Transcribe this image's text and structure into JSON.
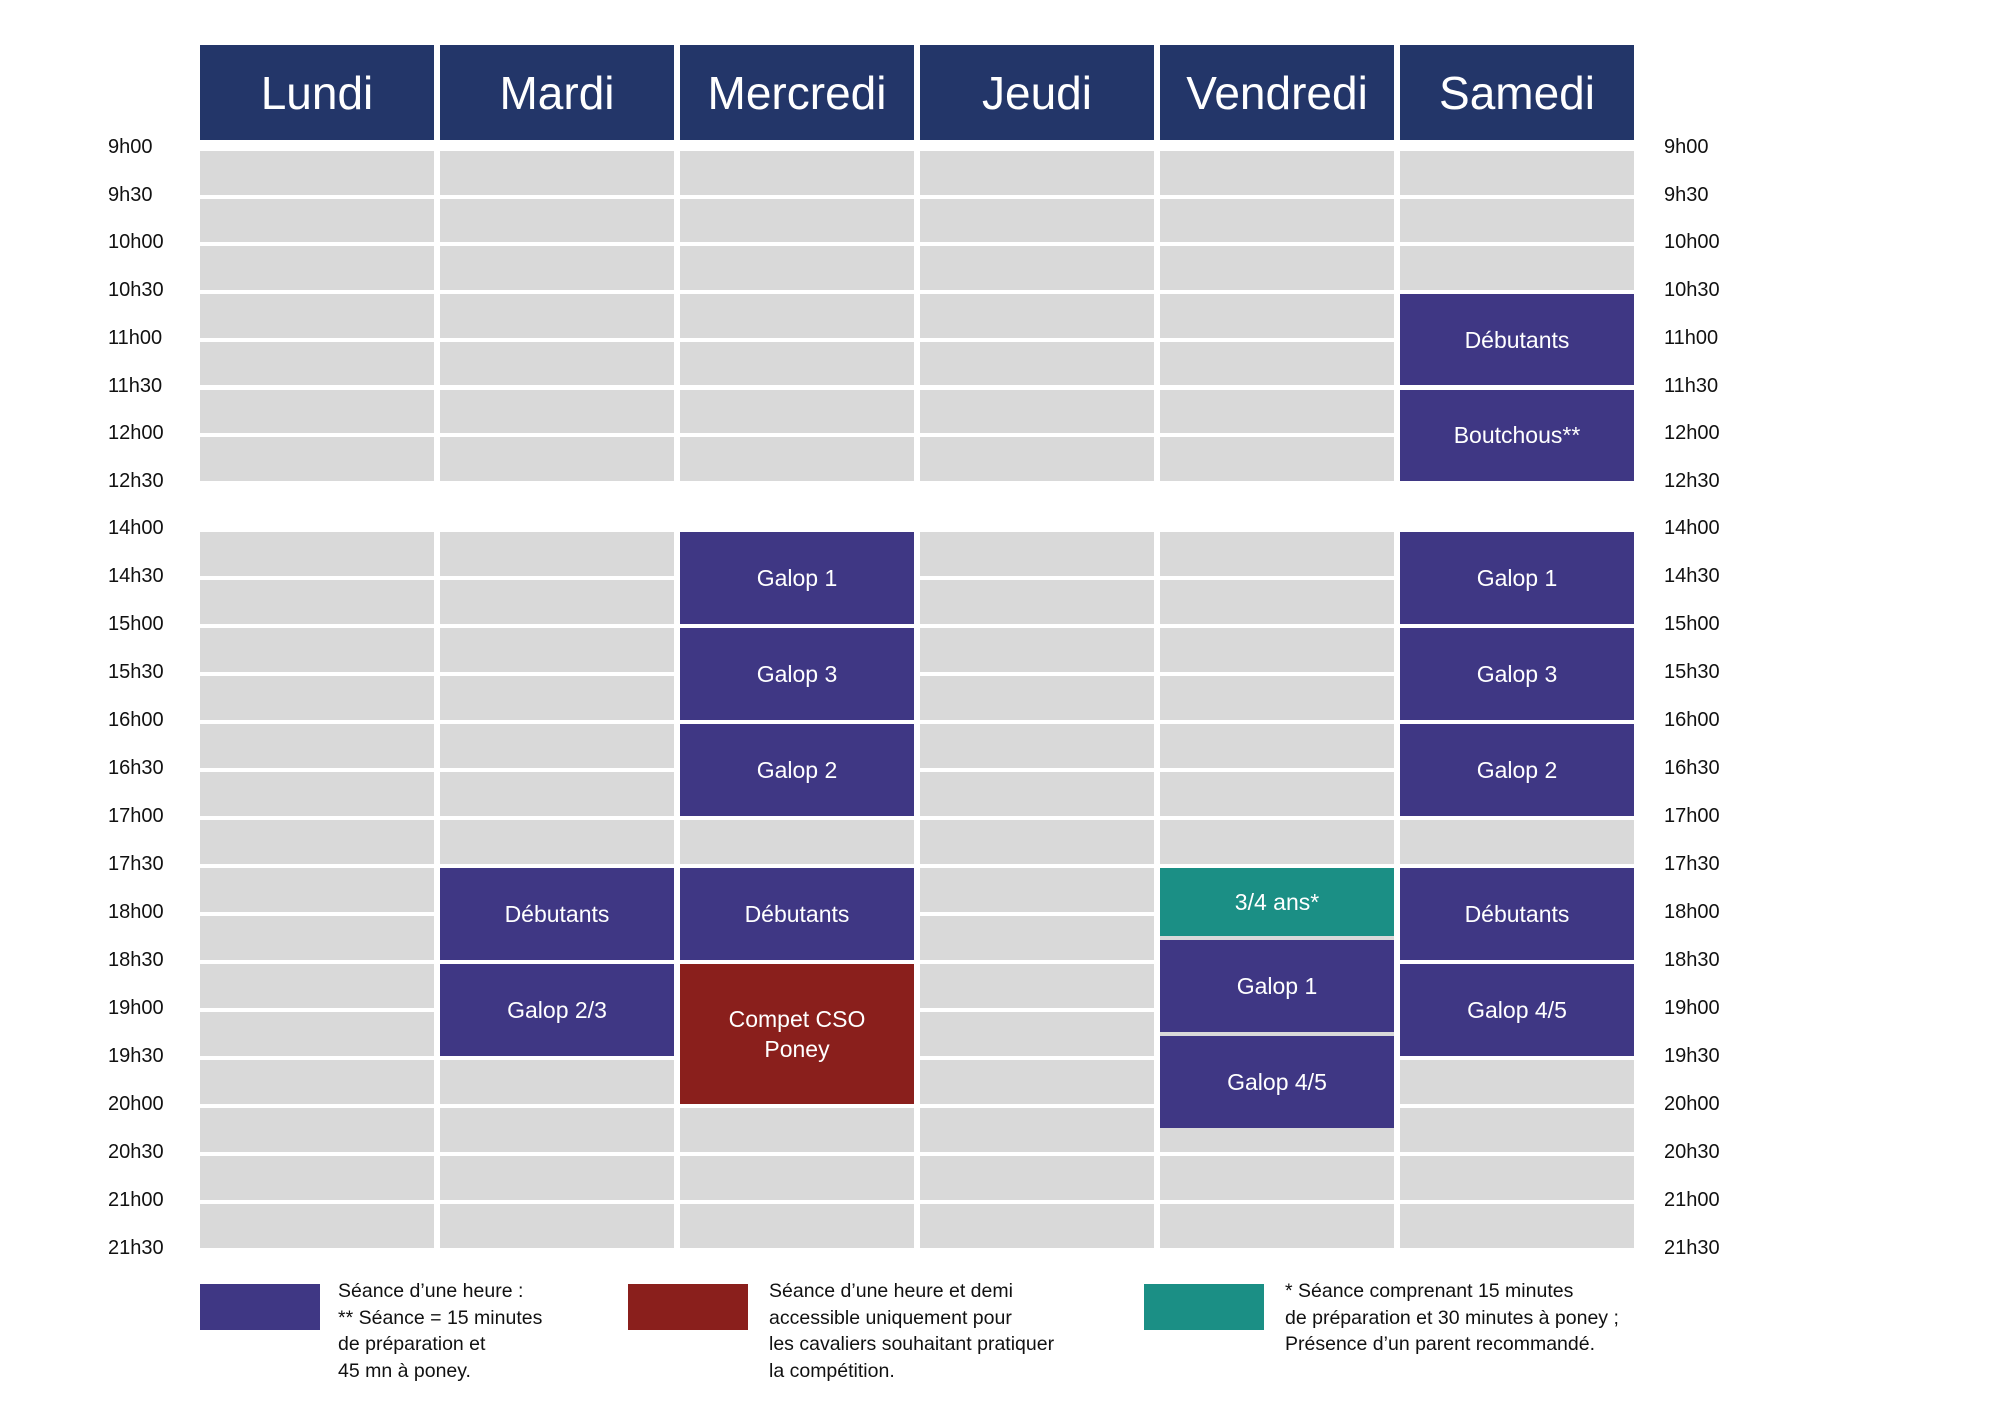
{
  "days": [
    "Lundi",
    "Mardi",
    "Mercredi",
    "Jeudi",
    "Vendredi",
    "Samedi"
  ],
  "times_morning": [
    "9h00",
    "9h30",
    "10h00",
    "10h30",
    "11h00",
    "11h30",
    "12h00",
    "12h30"
  ],
  "times_afternoon": [
    "14h00",
    "14h30",
    "15h00",
    "15h30",
    "16h00",
    "16h30",
    "17h00",
    "17h30",
    "18h00",
    "18h30",
    "19h00",
    "19h30",
    "20h00",
    "20h30",
    "21h00",
    "21h30"
  ],
  "colors": {
    "header": "#233669",
    "standard": "#3f3784",
    "competition": "#8a1f1c",
    "young": "#1b8f85",
    "empty": "#d9d9d9"
  },
  "events": [
    {
      "day": "Samedi",
      "start": "10h30",
      "end": "11h30",
      "label": "Débutants",
      "type": "standard"
    },
    {
      "day": "Samedi",
      "start": "11h30",
      "end": "12h30",
      "label": "Boutchous**",
      "type": "standard"
    },
    {
      "day": "Mercredi",
      "start": "14h00",
      "end": "15h00",
      "label": "Galop 1",
      "type": "standard"
    },
    {
      "day": "Mercredi",
      "start": "15h00",
      "end": "16h00",
      "label": "Galop 3",
      "type": "standard"
    },
    {
      "day": "Mercredi",
      "start": "16h00",
      "end": "17h00",
      "label": "Galop 2",
      "type": "standard"
    },
    {
      "day": "Mercredi",
      "start": "17h30",
      "end": "18h30",
      "label": "Débutants",
      "type": "standard"
    },
    {
      "day": "Mercredi",
      "start": "18h30",
      "end": "20h00",
      "label": "Compet CSO\nPoney",
      "type": "competition"
    },
    {
      "day": "Samedi",
      "start": "14h00",
      "end": "15h00",
      "label": "Galop 1",
      "type": "standard"
    },
    {
      "day": "Samedi",
      "start": "15h00",
      "end": "16h00",
      "label": "Galop 3",
      "type": "standard"
    },
    {
      "day": "Samedi",
      "start": "16h00",
      "end": "17h00",
      "label": "Galop 2",
      "type": "standard"
    },
    {
      "day": "Samedi",
      "start": "17h30",
      "end": "18h30",
      "label": "Débutants",
      "type": "standard"
    },
    {
      "day": "Samedi",
      "start": "18h30",
      "end": "19h30",
      "label": "Galop 4/5",
      "type": "standard"
    },
    {
      "day": "Mardi",
      "start": "17h30",
      "end": "18h30",
      "label": "Débutants",
      "type": "standard"
    },
    {
      "day": "Mardi",
      "start": "18h30",
      "end": "19h30",
      "label": "Galop 2/3",
      "type": "standard"
    },
    {
      "day": "Vendredi",
      "start": "17h30",
      "end": "18h15",
      "label": "3/4 ans*",
      "type": "young"
    },
    {
      "day": "Vendredi",
      "start": "18h15",
      "end": "19h15",
      "label": "Galop 1",
      "type": "standard"
    },
    {
      "day": "Vendredi",
      "start": "19h15",
      "end": "20h15",
      "label": "Galop 4/5",
      "type": "standard"
    }
  ],
  "legend": [
    {
      "type": "standard",
      "text": "Séance d’une heure :\n** Séance = 15 minutes\nde préparation et\n45 mn à poney."
    },
    {
      "type": "competition",
      "text": "Séance d’une heure et demi\naccessible uniquement pour\nles cavaliers souhaitant pratiquer\nla compétition."
    },
    {
      "type": "young",
      "text": "* Séance comprenant 15 minutes\nde préparation et 30 minutes à poney ;\nPrésence d’un parent recommandé."
    }
  ]
}
